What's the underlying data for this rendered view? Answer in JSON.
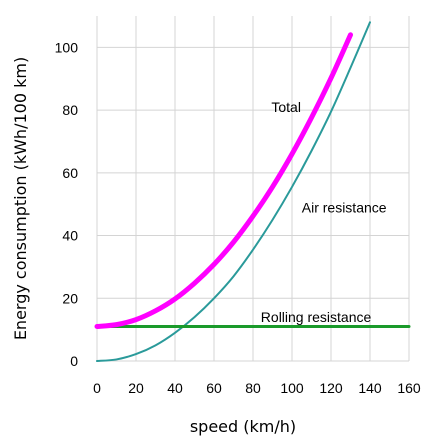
{
  "chart_data": {
    "type": "line",
    "xlabel": "speed (km/h)",
    "ylabel": "Energy consumption (kWh/100 km)",
    "xlim": [
      0,
      160
    ],
    "ylim": [
      0,
      110
    ],
    "xticks": [
      0,
      20,
      40,
      60,
      80,
      100,
      120,
      140,
      160
    ],
    "yticks": [
      0,
      20,
      40,
      60,
      80,
      100
    ],
    "grid": true,
    "series": [
      {
        "name": "Total",
        "color": "#ff00ff",
        "x": [
          0,
          10,
          20,
          30,
          40,
          50,
          60,
          70,
          80,
          90,
          100,
          110,
          120,
          130
        ],
        "y": [
          11,
          11.6,
          13.2,
          16.0,
          19.8,
          24.8,
          30.8,
          37.9,
          46.2,
          55.5,
          66.0,
          77.6,
          90.2,
          104.0
        ]
      },
      {
        "name": "Air resistance",
        "color": "#2a9a9a",
        "x": [
          0,
          10,
          20,
          30,
          40,
          50,
          60,
          70,
          80,
          90,
          100,
          110,
          120,
          130,
          140
        ],
        "y": [
          0,
          0.5,
          2.2,
          5.0,
          9.0,
          14.0,
          20.0,
          27.0,
          35.5,
          45.0,
          55.5,
          67.0,
          79.5,
          93.5,
          108.0
        ]
      },
      {
        "name": "Rolling resistance",
        "color": "#1a9a2a",
        "x": [
          0,
          160
        ],
        "y": [
          11,
          11
        ]
      }
    ],
    "annotations": [
      {
        "text": "Total",
        "x": 97,
        "y": 81
      },
      {
        "text": "Air resistance",
        "x": 105,
        "y": 49
      },
      {
        "text": "Rolling resistance",
        "x": 84,
        "y": 14
      }
    ]
  }
}
